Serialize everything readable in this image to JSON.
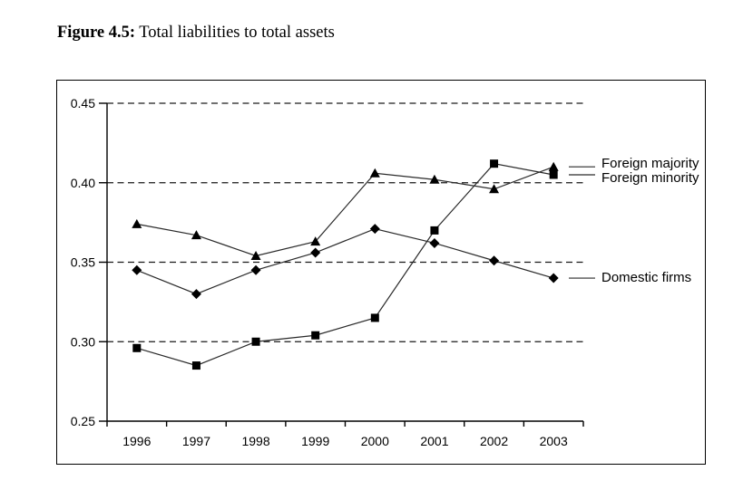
{
  "figure": {
    "title_prefix": "Figure 4.5:",
    "title_rest": "Total liabilities to total assets"
  },
  "chart_data": {
    "type": "line",
    "title": "Figure 4.5: Total liabilities to total assets",
    "categories": [
      "1996",
      "1997",
      "1998",
      "1999",
      "2000",
      "2001",
      "2002",
      "2003"
    ],
    "series": [
      {
        "name": "Foreign majority",
        "marker": "triangle",
        "values": [
          0.374,
          0.367,
          0.354,
          0.363,
          0.406,
          0.402,
          0.396,
          0.41
        ]
      },
      {
        "name": "Foreign minority",
        "marker": "square",
        "values": [
          0.296,
          0.285,
          0.3,
          0.304,
          0.315,
          0.37,
          0.412,
          0.405
        ]
      },
      {
        "name": "Domestic firms",
        "marker": "diamond",
        "values": [
          0.345,
          0.33,
          0.345,
          0.356,
          0.371,
          0.362,
          0.351,
          0.34
        ]
      }
    ],
    "xlabel": "",
    "ylabel": "",
    "ylim": [
      0.25,
      0.45
    ],
    "yticks": [
      0.25,
      0.3,
      0.35,
      0.4,
      0.45
    ],
    "ytick_labels": [
      "0.25",
      "0.30",
      "0.35",
      "0.40",
      "0.45"
    ],
    "grid": "horizontal-dashed",
    "legend_position": "inline-right-of-last-point",
    "line_color": "#000000",
    "marker_color": "#000000",
    "background": "#ffffff"
  }
}
